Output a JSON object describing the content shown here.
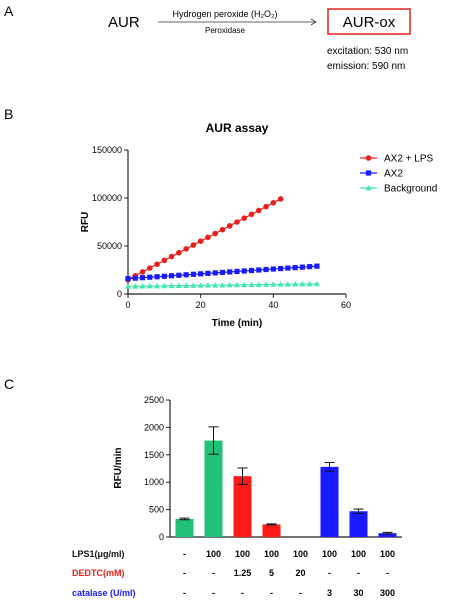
{
  "panels": {
    "a": "A",
    "b": "B",
    "c": "C"
  },
  "reaction": {
    "substrate": "AUR",
    "reagent": "Hydrogen peroxide (H₂O₂)",
    "enzyme": "Peroxidase",
    "product": "AUR-ox",
    "excitation": "excitation: 530 nm",
    "emission": "emission: 590 nm"
  },
  "colors": {
    "red": "#e8211c",
    "blue": "#1a1aff",
    "cyan": "#46e6b2",
    "green": "#22c17a",
    "redbar": "#ff1a1a"
  },
  "chart_data": [
    {
      "type": "scatter",
      "title": "AUR assay",
      "xlabel": "Time (min)",
      "ylabel": "RFU",
      "xlim": [
        0,
        60
      ],
      "ylim": [
        0,
        150000
      ],
      "xticks": [
        "0",
        "20",
        "40",
        "60"
      ],
      "yticks": [
        "0",
        "50000",
        "100000",
        "150000"
      ],
      "legend_position": "top-right",
      "series": [
        {
          "name": "AX2 + LPS",
          "color": "#e8211c",
          "marker": "circle",
          "x": [
            0,
            2,
            4,
            6,
            8,
            10,
            12,
            14,
            16,
            18,
            20,
            22,
            24,
            26,
            28,
            30,
            32,
            34,
            36,
            38,
            40,
            42
          ],
          "y": [
            15000,
            19000,
            23000,
            27000,
            31000,
            35000,
            39000,
            43000,
            47000,
            51000,
            55000,
            59000,
            63000,
            67000,
            71000,
            75000,
            79000,
            83000,
            87000,
            91000,
            95000,
            99000
          ]
        },
        {
          "name": "AX2",
          "color": "#1a1aff",
          "marker": "square",
          "x": [
            0,
            2,
            4,
            6,
            8,
            10,
            12,
            14,
            16,
            18,
            20,
            22,
            24,
            26,
            28,
            30,
            32,
            34,
            36,
            38,
            40,
            42,
            44,
            46,
            48,
            50,
            52
          ],
          "y": [
            16000,
            16500,
            17000,
            17500,
            18000,
            18500,
            19000,
            19500,
            20000,
            20500,
            21000,
            21500,
            22000,
            22500,
            23000,
            23500,
            24000,
            24500,
            25000,
            25500,
            26000,
            26500,
            27000,
            27500,
            28000,
            28500,
            29000
          ]
        },
        {
          "name": "Background",
          "color": "#46e6b2",
          "marker": "triangle",
          "x": [
            0,
            2,
            4,
            6,
            8,
            10,
            12,
            14,
            16,
            18,
            20,
            22,
            24,
            26,
            28,
            30,
            32,
            34,
            36,
            38,
            40,
            42,
            44,
            46,
            48,
            50,
            52
          ],
          "y": [
            8000,
            8100,
            8200,
            8300,
            8400,
            8500,
            8600,
            8700,
            8800,
            8900,
            9000,
            9100,
            9200,
            9300,
            9400,
            9500,
            9600,
            9700,
            9800,
            9900,
            10000,
            10100,
            10200,
            10300,
            10400,
            10500,
            10600
          ]
        }
      ]
    },
    {
      "type": "bar",
      "ylabel": "RFU/min",
      "ylim": [
        0,
        2500
      ],
      "yticks": [
        "0",
        "500",
        "1000",
        "1500",
        "2000",
        "2500"
      ],
      "values": [
        330,
        1760,
        1110,
        230,
        0,
        1280,
        470,
        70
      ],
      "errors": [
        15,
        250,
        150,
        10,
        0,
        80,
        40,
        15
      ],
      "bar_colors": [
        "#22c17a",
        "#22c17a",
        "#ff1a1a",
        "#ff1a1a",
        "#ff1a1a",
        "#1a1aff",
        "#1a1aff",
        "#1a1aff"
      ],
      "table": [
        {
          "label": "LPS1(μg/ml)",
          "color": "#111111",
          "cells": [
            "-",
            "100",
            "100",
            "100",
            "100",
            "100",
            "100",
            "100"
          ]
        },
        {
          "label": "DEDTC(mM)",
          "color": "#e8211c",
          "cells": [
            "-",
            "-",
            "1.25",
            "5",
            "20",
            "-",
            "-",
            "-"
          ]
        },
        {
          "label": "catalase (U/ml)",
          "color": "#1a1aff",
          "cells": [
            "-",
            "-",
            "-",
            "-",
            "-",
            "3",
            "30",
            "300"
          ]
        }
      ]
    }
  ]
}
